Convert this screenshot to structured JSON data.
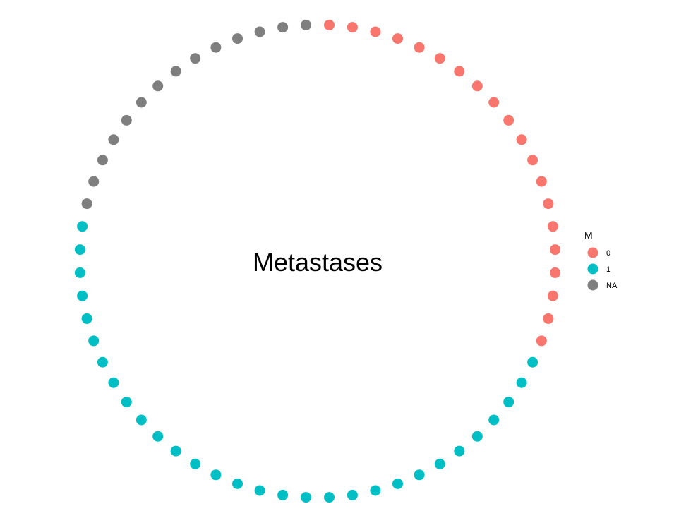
{
  "chart_data": {
    "type": "scatter",
    "subtype": "circular dot plot",
    "title": "Metastases",
    "xlabel": "",
    "ylabel": "",
    "grid": false,
    "legend_position": "right",
    "legend": {
      "title": "M",
      "entries": [
        {
          "label": "0",
          "color": "#F8766D"
        },
        {
          "label": "1",
          "color": "#00BFC4"
        },
        {
          "label": "NA",
          "color": "#7F7F7F"
        }
      ]
    },
    "total_points": 64,
    "series": [
      {
        "name": "0",
        "color": "#F8766D",
        "count": 20
      },
      {
        "name": "1",
        "color": "#00BFC4",
        "count": 30
      },
      {
        "name": "NA",
        "color": "#7F7F7F",
        "count": 14
      }
    ],
    "point_order": [
      "0",
      "1",
      "NA"
    ]
  }
}
